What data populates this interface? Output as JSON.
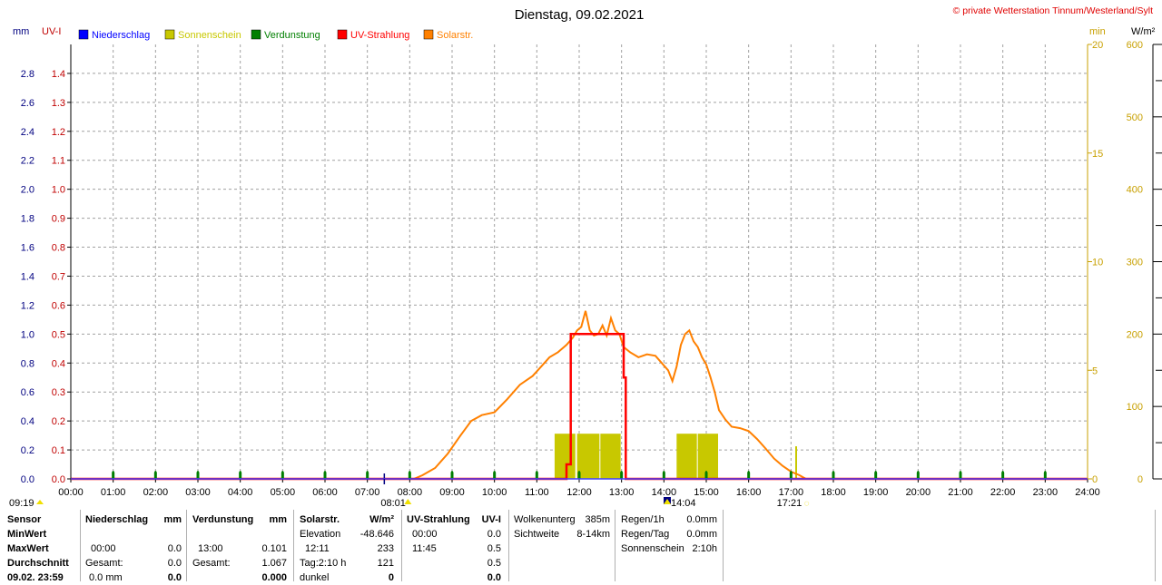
{
  "header": {
    "title": "Dienstag, 09.02.2021",
    "copyright": "© private Wetterstation Tinnum/Westerland/Sylt"
  },
  "colors": {
    "niederschlag": "#0000ff",
    "sonnenschein": "#c8c800",
    "verdunstung": "#007f00",
    "uv": "#ff0000",
    "solar": "#ff8000",
    "grid": "#a0a0a0",
    "left_axis": "#000080",
    "uv_axis": "#c00000",
    "right_axis": "#c8a000"
  },
  "chart_data": {
    "type": "line",
    "title": "Dienstag, 09.02.2021",
    "axes": {
      "mm": {
        "label": "mm",
        "range": [
          0,
          3.0
        ],
        "ticks": [
          "0.0",
          "0.2",
          "0.4",
          "0.6",
          "0.8",
          "1.0",
          "1.2",
          "1.4",
          "1.6",
          "1.8",
          "2.0",
          "2.2",
          "2.4",
          "2.6",
          "2.8"
        ]
      },
      "uv": {
        "label": "UV-I",
        "range": [
          0,
          1.5
        ],
        "ticks": [
          "0.0",
          "0.1",
          "0.2",
          "0.3",
          "0.4",
          "0.5",
          "0.6",
          "0.7",
          "0.8",
          "0.9",
          "1.0",
          "1.1",
          "1.2",
          "1.3",
          "1.4"
        ]
      },
      "min": {
        "label": "min",
        "range": [
          0,
          20
        ],
        "ticks": [
          "0",
          "5",
          "10",
          "15",
          "20"
        ]
      },
      "wm2": {
        "label": "W/m²",
        "range": [
          0,
          600
        ],
        "ticks": [
          "0",
          "100",
          "200",
          "300",
          "400",
          "500",
          "600"
        ]
      },
      "x": {
        "range": [
          0,
          24
        ],
        "ticks": [
          "00:00",
          "01:00",
          "02:00",
          "03:00",
          "04:00",
          "05:00",
          "06:00",
          "07:00",
          "08:00",
          "09:00",
          "10:00",
          "11:00",
          "12:00",
          "13:00",
          "14:00",
          "15:00",
          "16:00",
          "17:00",
          "18:00",
          "19:00",
          "20:00",
          "21:00",
          "22:00",
          "23:00",
          "24:00"
        ]
      }
    },
    "grid": true,
    "legend": [
      "Niederschlag",
      "Sonnenschein",
      "Verdunstung",
      "UV-Strahlung",
      "Solarstr."
    ],
    "solar": [
      [
        8.1,
        0
      ],
      [
        8.3,
        5
      ],
      [
        8.6,
        15
      ],
      [
        8.9,
        35
      ],
      [
        9.2,
        60
      ],
      [
        9.45,
        80
      ],
      [
        9.7,
        88
      ],
      [
        10.0,
        92
      ],
      [
        10.3,
        110
      ],
      [
        10.6,
        130
      ],
      [
        10.9,
        142
      ],
      [
        11.1,
        155
      ],
      [
        11.3,
        168
      ],
      [
        11.5,
        175
      ],
      [
        11.7,
        185
      ],
      [
        11.85,
        195
      ],
      [
        11.95,
        205
      ],
      [
        12.05,
        210
      ],
      [
        12.15,
        232
      ],
      [
        12.25,
        205
      ],
      [
        12.35,
        198
      ],
      [
        12.45,
        200
      ],
      [
        12.55,
        212
      ],
      [
        12.65,
        198
      ],
      [
        12.75,
        222
      ],
      [
        12.85,
        205
      ],
      [
        12.95,
        200
      ],
      [
        13.05,
        182
      ],
      [
        13.2,
        175
      ],
      [
        13.4,
        168
      ],
      [
        13.6,
        172
      ],
      [
        13.8,
        170
      ],
      [
        13.95,
        160
      ],
      [
        14.1,
        150
      ],
      [
        14.2,
        135
      ],
      [
        14.3,
        155
      ],
      [
        14.4,
        185
      ],
      [
        14.5,
        200
      ],
      [
        14.6,
        205
      ],
      [
        14.7,
        190
      ],
      [
        14.8,
        182
      ],
      [
        14.9,
        168
      ],
      [
        15.0,
        158
      ],
      [
        15.1,
        140
      ],
      [
        15.2,
        120
      ],
      [
        15.3,
        95
      ],
      [
        15.45,
        82
      ],
      [
        15.6,
        72
      ],
      [
        15.8,
        70
      ],
      [
        16.0,
        66
      ],
      [
        16.2,
        55
      ],
      [
        16.4,
        42
      ],
      [
        16.6,
        28
      ],
      [
        16.8,
        18
      ],
      [
        17.0,
        10
      ],
      [
        17.2,
        5
      ],
      [
        17.35,
        0
      ]
    ],
    "uv": [
      [
        0,
        0
      ],
      [
        11.7,
        0
      ],
      [
        11.7,
        0.05
      ],
      [
        11.8,
        0.05
      ],
      [
        11.8,
        0.5
      ],
      [
        12.0,
        0.5
      ],
      [
        13.0,
        0.5
      ],
      [
        13.05,
        0.5
      ],
      [
        13.05,
        0.35
      ],
      [
        13.1,
        0.35
      ],
      [
        13.1,
        0
      ],
      [
        24,
        0
      ]
    ],
    "sunshine_blocks": [
      [
        11.42,
        11.93,
        2.08
      ],
      [
        11.95,
        12.5,
        2.08
      ],
      [
        12.5,
        13.0,
        2.08
      ],
      [
        14.3,
        14.8,
        2.08
      ],
      [
        14.8,
        15.3,
        2.08
      ]
    ],
    "sunshine_spike": [
      [
        17.1,
        1.5
      ]
    ],
    "verdunstung_marks": [
      1,
      2,
      3,
      4,
      5,
      6,
      7,
      8,
      9,
      10,
      11,
      12,
      13,
      14,
      15,
      16,
      17,
      18,
      19,
      20,
      21,
      22,
      23
    ],
    "niederschlag_marks": [
      7.4
    ],
    "time_markers": [
      {
        "label": "09:19",
        "x": 0.0
      },
      {
        "label": "08:01",
        "x": 8.0
      },
      {
        "label": "14:04",
        "x": 14.1
      },
      {
        "label": "17:21",
        "x": 17.35
      }
    ]
  },
  "table": {
    "row_labels": [
      "Sensor",
      "MinWert",
      "MaxWert",
      "Durchschnitt",
      "09.02. 23:59"
    ],
    "niederschlag": {
      "header": "Niederschlag",
      "unit": "mm",
      "rows": [
        [
          "",
          ""
        ],
        [
          "00:00",
          "0.0"
        ],
        [
          "Gesamt:",
          "0.0"
        ],
        [
          "0.0 mm",
          "0.0"
        ]
      ]
    },
    "verdunstung": {
      "header": "Verdunstung",
      "unit": "mm",
      "rows": [
        [
          "",
          ""
        ],
        [
          "13:00",
          "0.101"
        ],
        [
          "Gesamt:",
          "1.067"
        ],
        [
          "",
          "0.000"
        ]
      ]
    },
    "solar": {
      "header": "Solarstr.",
      "unit": "W/m²",
      "rows": [
        [
          "Elevation",
          "-48.646"
        ],
        [
          "12:11",
          "233"
        ],
        [
          "Tag:2:10 h",
          "121"
        ],
        [
          "dunkel",
          "0"
        ]
      ]
    },
    "uv": {
      "header": "UV-Strahlung",
      "unit": "UV-I",
      "rows": [
        [
          "00:00",
          "0.0"
        ],
        [
          "11:45",
          "0.5"
        ],
        [
          "",
          "0.5"
        ],
        [
          "",
          "0.0"
        ]
      ]
    },
    "info": {
      "rows": [
        [
          "Wolkenunterg",
          "385m"
        ],
        [
          "Sichtweite",
          "8-14km"
        ]
      ]
    },
    "regen": {
      "rows": [
        [
          "Regen/1h",
          "0.0mm"
        ],
        [
          "Regen/Tag",
          "0.0mm"
        ],
        [
          "Sonnenschein",
          "2:10h"
        ]
      ]
    }
  }
}
